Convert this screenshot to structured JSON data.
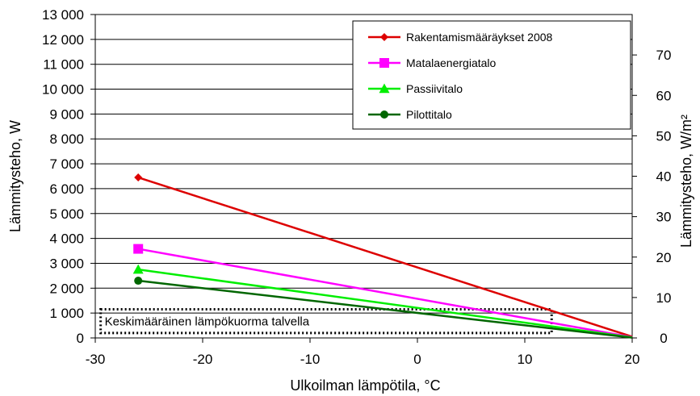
{
  "chart_data": {
    "type": "line",
    "xlabel": "Ulkoilman lämpötila, °C",
    "ylabel": "Lämmitysteho, W",
    "y2label": "Lämmitysteho, W/m²",
    "xlim": [
      -30,
      20
    ],
    "ylim": [
      0,
      13000
    ],
    "y2lim": [
      0,
      80
    ],
    "xticks": [
      -30,
      -20,
      -10,
      0,
      10,
      20
    ],
    "xtick_labels": [
      "-30",
      "-20",
      "-10",
      "0",
      "10",
      "20"
    ],
    "yticks": [
      0,
      1000,
      2000,
      3000,
      4000,
      5000,
      6000,
      7000,
      8000,
      9000,
      10000,
      11000,
      12000,
      13000
    ],
    "ytick_labels": [
      "0",
      "1 000",
      "2 000",
      "3 000",
      "4 000",
      "5 000",
      "6 000",
      "7 000",
      "8 000",
      "9 000",
      "10 000",
      "11 000",
      "12 000",
      "13 000"
    ],
    "y2ticks": [
      0,
      10,
      20,
      30,
      40,
      50,
      60,
      70
    ],
    "y2tick_labels": [
      "0",
      "10",
      "20",
      "30",
      "40",
      "50",
      "60",
      "70"
    ],
    "grid": "horizontal",
    "legend_position": "top-right",
    "series": [
      {
        "name": "Rakentamismääräykset 2008",
        "color": "#dd0000",
        "marker": "diamond",
        "x": [
          -26,
          20
        ],
        "y": [
          6450,
          50
        ]
      },
      {
        "name": "Matalaenergiatalo",
        "color": "#ff00ff",
        "marker": "square",
        "x": [
          -26,
          20
        ],
        "y": [
          3580,
          30
        ]
      },
      {
        "name": "Passiivitalo",
        "color": "#00ee00",
        "marker": "triangle",
        "x": [
          -26,
          20
        ],
        "y": [
          2750,
          20
        ]
      },
      {
        "name": "Pilottitalo",
        "color": "#006600",
        "marker": "circle",
        "x": [
          -26,
          20
        ],
        "y": [
          2300,
          10
        ]
      }
    ],
    "annotation": {
      "text": "Keskimääräinen lämpökuorma talvella",
      "x_range": [
        -29.5,
        12.5
      ],
      "y_range": [
        200,
        1150
      ]
    }
  }
}
